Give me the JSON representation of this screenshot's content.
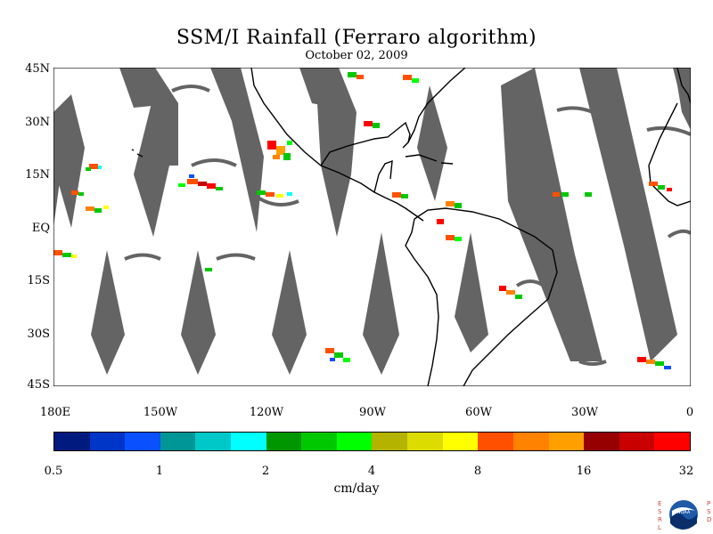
{
  "title": "SSM/I Rainfall (Ferraro algorithm)",
  "subtitle": "October 02, 2009",
  "lat_labels": [
    "45N",
    "30N",
    "15N",
    "EQ",
    "15S",
    "30S",
    "45S"
  ],
  "lon_labels": [
    "180E",
    "150W",
    "120W",
    "90W",
    "60W",
    "30W",
    "0"
  ],
  "colorbar": {
    "colors": [
      "#001a80",
      "#0036c8",
      "#0a50ff",
      "#009696",
      "#00c8c8",
      "#00ffff",
      "#009600",
      "#00c800",
      "#00ff00",
      "#b4b400",
      "#dcdc00",
      "#ffff00",
      "#ff5000",
      "#ff8200",
      "#ffa000",
      "#960000",
      "#c80000",
      "#ff0000"
    ],
    "tick_labels": [
      "0.5",
      "1",
      "2",
      "4",
      "8",
      "16",
      "32"
    ],
    "units": "cm/day"
  },
  "logo": {
    "left_letters": [
      "E",
      "S",
      "R",
      "L"
    ],
    "right_letters": [
      "P",
      "S",
      "D"
    ],
    "text": "NOAA"
  },
  "map_info": {
    "data_gap_color": "#646464",
    "coast_color": "#000000",
    "lon_range": [
      -180,
      0
    ],
    "lat_range": [
      -45,
      45
    ]
  }
}
